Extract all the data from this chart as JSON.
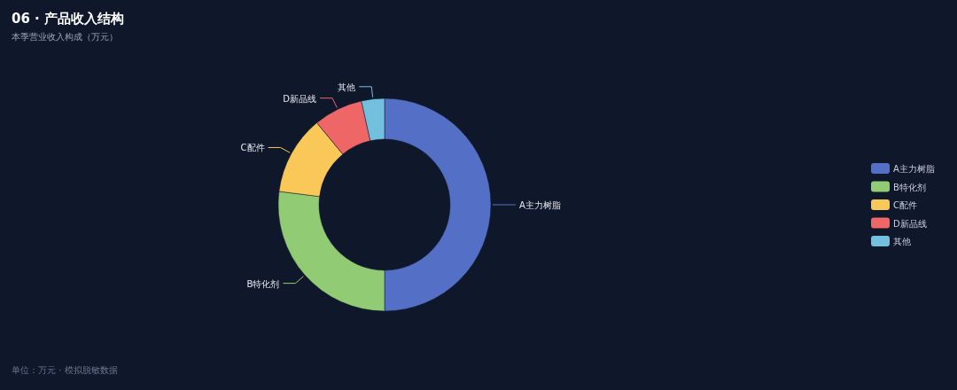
{
  "chart_data": {
    "type": "donut",
    "title": "06 · 产品收入结构",
    "subtitle": "本季营业收入构成（万元）",
    "categories": [
      "A主力树脂",
      "B特化剂",
      "C配件",
      "D新品线",
      "其他"
    ],
    "values": [
      50,
      27,
      12,
      7.5,
      3.5
    ],
    "colors": [
      "#5470c6",
      "#91cc75",
      "#fac858",
      "#ee6666",
      "#73c0de"
    ],
    "legend": "right",
    "annotations": [
      "单位：万元 · 模拟脱敏数据"
    ]
  }
}
